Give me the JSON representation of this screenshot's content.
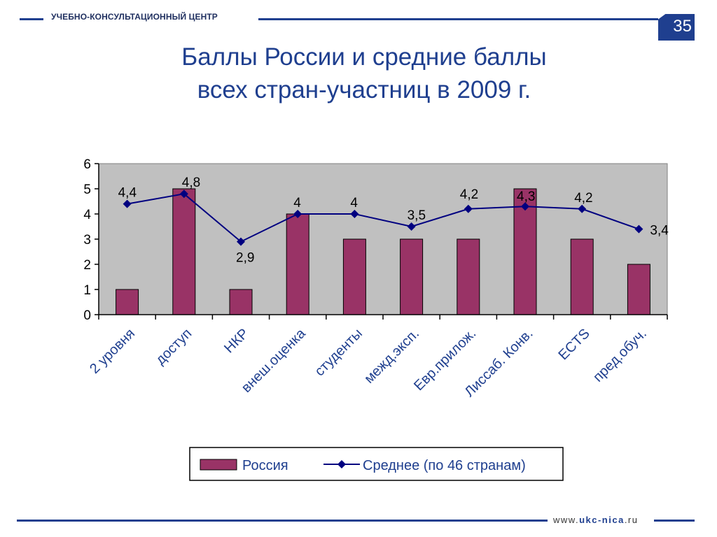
{
  "header": {
    "org_name": "УЧЕБНО-КОНСУЛЬТАЦИОННЫЙ ЦЕНТР",
    "page_number": "35"
  },
  "title": {
    "line1": "Баллы России и средние баллы",
    "line2": "всех стран-участниц в 2009 г."
  },
  "footer": {
    "url_prefix": "www.",
    "url_brand": "ukc-nica",
    "url_suffix": ".ru"
  },
  "colors": {
    "brand": "#1f3f8f",
    "bar": "#993366",
    "line": "#000080",
    "plot_bg": "#c0c0c0"
  },
  "chart_data": {
    "type": "bar",
    "categories": [
      "2 уровня",
      "доступ",
      "НКР",
      "внеш.оценка",
      "студенты",
      "межд.эксп.",
      "Евр.прилож.",
      "Лиссаб. Конв.",
      "ECTS",
      "пред.обуч."
    ],
    "series": [
      {
        "name": "Россия",
        "type": "bar",
        "values": [
          1,
          5,
          1,
          4,
          3,
          3,
          3,
          5,
          3,
          2
        ]
      },
      {
        "name": "Среднее (по 46 странам)",
        "type": "line",
        "values": [
          4.4,
          4.8,
          2.9,
          4,
          4,
          3.5,
          4.2,
          4.3,
          4.2,
          3.4
        ],
        "labels": [
          "4,4",
          "4,8",
          "2,9",
          "4",
          "4",
          "3,5",
          "4,2",
          "4,3",
          "4,2",
          "3,4"
        ]
      }
    ],
    "yticks": [
      "0",
      "1",
      "2",
      "3",
      "4",
      "5",
      "6"
    ],
    "ylim": [
      0,
      6
    ],
    "grid": false,
    "legend_position": "bottom"
  }
}
